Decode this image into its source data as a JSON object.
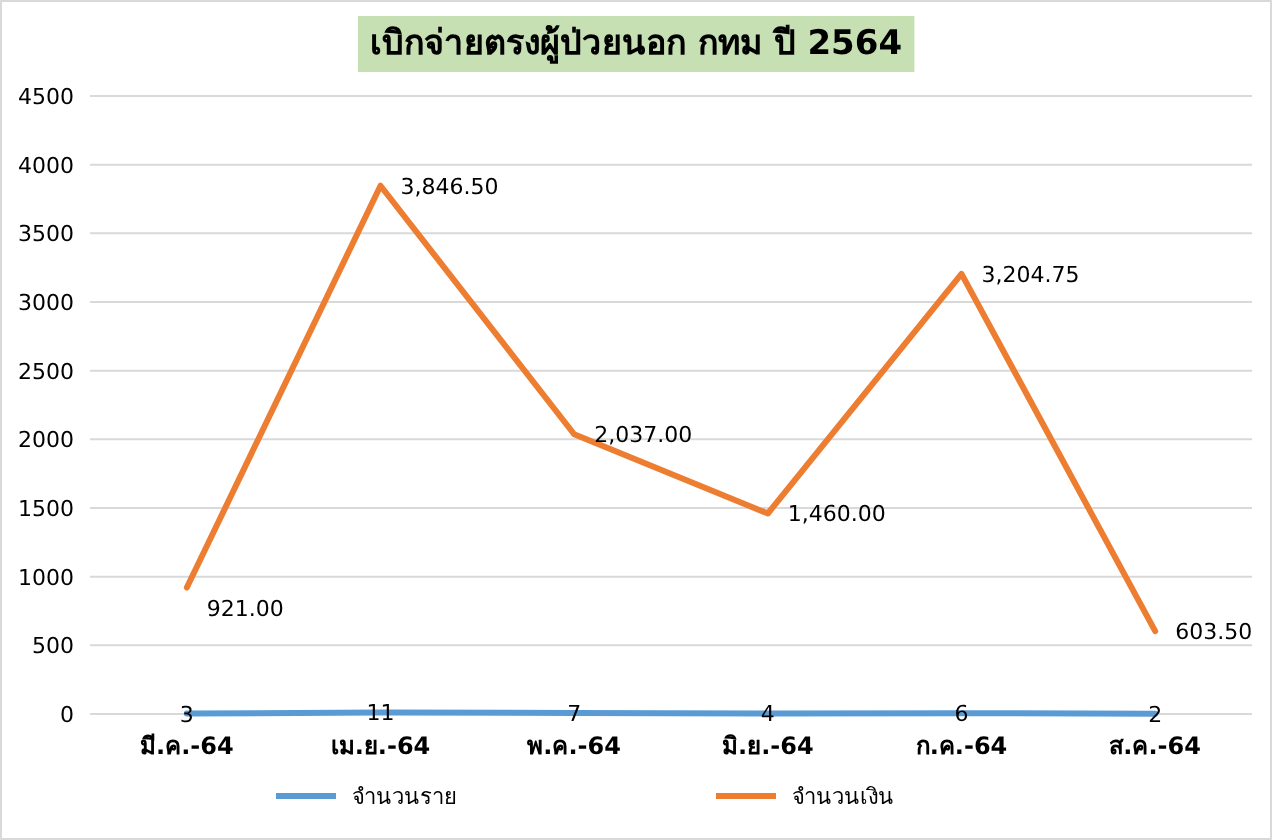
{
  "chart_data": {
    "type": "line",
    "title": "เบิกจ่ายตรงผู้ป่วยนอก กทม ปี 2564",
    "categories": [
      "มี.ค.-64",
      "เม.ย.-64",
      "พ.ค.-64",
      "มิ.ย.-64",
      "ก.ค.-64",
      "ส.ค.-64"
    ],
    "series": [
      {
        "name": "จำนวนราย",
        "color": "#5b9bd5",
        "values": [
          3,
          11,
          7,
          4,
          6,
          2
        ],
        "value_labels": [
          "3",
          "11",
          "7",
          "4",
          "6",
          "2"
        ]
      },
      {
        "name": "จำนวนเงิน",
        "color": "#ed7d31",
        "values": [
          921,
          3846.5,
          2037,
          1460,
          3204.75,
          603.5
        ],
        "value_labels": [
          "921.00",
          "3,846.50",
          "2,037.00",
          "1,460.00",
          "3,204.75",
          "603.50"
        ]
      }
    ],
    "ylim": [
      0,
      4500
    ],
    "yticks": [
      0,
      500,
      1000,
      1500,
      2000,
      2500,
      3000,
      3500,
      4000,
      4500
    ],
    "grid": "y",
    "legend": "bottom",
    "marker": "none",
    "line_style": "solid"
  }
}
